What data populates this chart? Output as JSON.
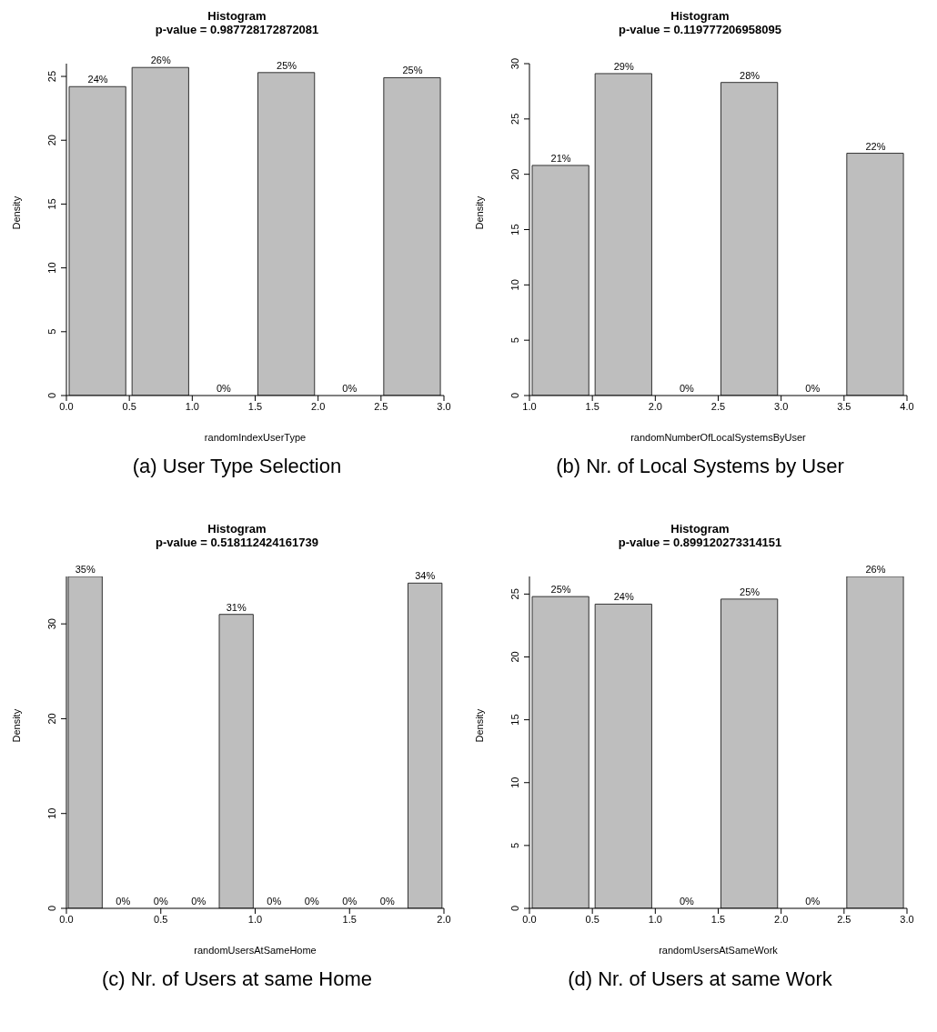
{
  "chart_data": [
    {
      "type": "histogram",
      "title": "Histogram",
      "subtitle": "p-value = 0.987728172872081",
      "xlabel": "randomIndexUserType",
      "ylabel": "Density",
      "bins": [
        0,
        0.5,
        1,
        1.5,
        2,
        2.5,
        3
      ],
      "values": [
        24.2,
        25.7,
        0,
        25.3,
        0,
        24.9
      ],
      "value_labels": [
        "24%",
        "26%",
        "0%",
        "25%",
        "0%",
        "25%"
      ],
      "color": "#bebebe",
      "xlim": [
        0,
        3
      ],
      "xticks": [
        {
          "value": 0,
          "label": "0.0"
        },
        {
          "value": 0.5,
          "label": "0.5"
        },
        {
          "value": 1,
          "label": "1.0"
        },
        {
          "value": 1.5,
          "label": "1.5"
        },
        {
          "value": 2,
          "label": "2.0"
        },
        {
          "value": 2.5,
          "label": "2.5"
        },
        {
          "value": 3,
          "label": "3.0"
        }
      ],
      "ylim": [
        0,
        26
      ],
      "yticks": [
        0,
        5,
        10,
        15,
        20,
        25
      ],
      "grid": false,
      "legend": false,
      "annotations": [
        "(a) User Type Selection"
      ]
    },
    {
      "type": "histogram",
      "title": "Histogram",
      "subtitle": "p-value = 0.119777206958095",
      "xlabel": "randomNumberOfLocalSystemsByUser",
      "ylabel": "Density",
      "bins": [
        1,
        1.5,
        2,
        2.5,
        3,
        3.5,
        4
      ],
      "values": [
        20.8,
        29.1,
        0,
        28.3,
        0,
        21.9
      ],
      "value_labels": [
        "21%",
        "29%",
        "0%",
        "28%",
        "0%",
        "22%"
      ],
      "color": "#bebebe",
      "xlim": [
        1,
        4
      ],
      "xticks": [
        {
          "value": 1,
          "label": "1.0"
        },
        {
          "value": 1.5,
          "label": "1.5"
        },
        {
          "value": 2,
          "label": "2.0"
        },
        {
          "value": 2.5,
          "label": "2.5"
        },
        {
          "value": 3,
          "label": "3.0"
        },
        {
          "value": 3.5,
          "label": "3.5"
        },
        {
          "value": 4,
          "label": "4.0"
        }
      ],
      "ylim": [
        0,
        30
      ],
      "yticks": [
        0,
        5,
        10,
        15,
        20,
        25,
        30
      ],
      "grid": false,
      "legend": false,
      "annotations": [
        "(b) Nr. of Local Systems by User"
      ]
    },
    {
      "type": "histogram",
      "title": "Histogram",
      "subtitle": "p-value = 0.518112424161739",
      "xlabel": "randomUsersAtSameHome",
      "ylabel": "Density",
      "bins": [
        0,
        0.2,
        0.4,
        0.6,
        0.8,
        1,
        1.2,
        1.4,
        1.6,
        1.8,
        2
      ],
      "values": [
        35,
        0,
        0,
        0,
        31,
        0,
        0,
        0,
        0,
        34.3
      ],
      "value_labels": [
        "35%",
        "0%",
        "0%",
        "0%",
        "31%",
        "0%",
        "0%",
        "0%",
        "0%",
        "34%"
      ],
      "color": "#bebebe",
      "xlim": [
        0,
        2
      ],
      "xticks": [
        {
          "value": 0,
          "label": "0.0"
        },
        {
          "value": 0.5,
          "label": "0.5"
        },
        {
          "value": 1,
          "label": "1.0"
        },
        {
          "value": 1.5,
          "label": "1.5"
        },
        {
          "value": 2,
          "label": "2.0"
        }
      ],
      "ylim": [
        0,
        35
      ],
      "yticks": [
        0,
        10,
        20,
        30
      ],
      "grid": false,
      "legend": false,
      "annotations": [
        "(c) Nr. of Users at same Home"
      ]
    },
    {
      "type": "histogram",
      "title": "Histogram",
      "subtitle": "p-value = 0.899120273314151",
      "xlabel": "randomUsersAtSameWork",
      "ylabel": "Density",
      "bins": [
        0,
        0.5,
        1,
        1.5,
        2,
        2.5,
        3
      ],
      "values": [
        24.8,
        24.2,
        0,
        24.6,
        0,
        26.4
      ],
      "value_labels": [
        "25%",
        "24%",
        "0%",
        "25%",
        "0%",
        "26%"
      ],
      "color": "#bebebe",
      "xlim": [
        0,
        3
      ],
      "xticks": [
        {
          "value": 0,
          "label": "0.0"
        },
        {
          "value": 0.5,
          "label": "0.5"
        },
        {
          "value": 1,
          "label": "1.0"
        },
        {
          "value": 1.5,
          "label": "1.5"
        },
        {
          "value": 2,
          "label": "2.0"
        },
        {
          "value": 2.5,
          "label": "2.5"
        },
        {
          "value": 3,
          "label": "3.0"
        }
      ],
      "ylim": [
        0,
        26.4
      ],
      "yticks": [
        0,
        5,
        10,
        15,
        20,
        25
      ],
      "grid": false,
      "legend": false,
      "annotations": [
        "(d) Nr. of Users at same Work"
      ]
    }
  ]
}
